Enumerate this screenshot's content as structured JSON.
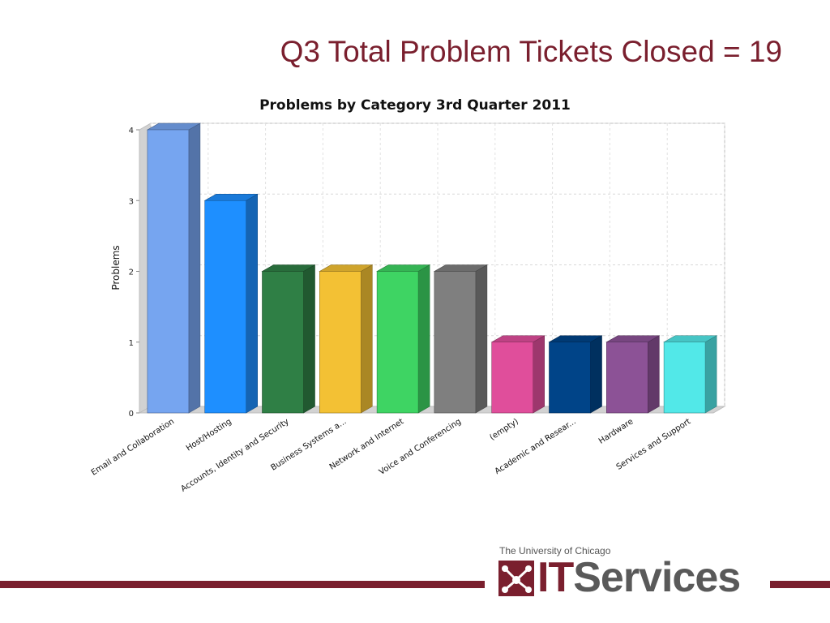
{
  "slide": {
    "title": "Q3 Total Problem Tickets Closed = 19"
  },
  "chart_data": {
    "type": "bar",
    "title": "Problems by Category 3rd Quarter 2011",
    "xlabel": "",
    "ylabel": "Problems",
    "ylim": [
      0,
      4
    ],
    "yticks": [
      0,
      1,
      2,
      3,
      4
    ],
    "grid": true,
    "three_d": true,
    "categories": [
      "Email and Collaboration",
      "Host/Hosting",
      "Accounts, Identity and Security",
      "Business Systems a...",
      "Network and Internet",
      "Voice and Conferencing",
      "(empty)",
      "Academic and Resear...",
      "Hardware",
      "Services and Support"
    ],
    "values": [
      4,
      3,
      2,
      2,
      2,
      2,
      1,
      1,
      1,
      1
    ],
    "colors": [
      "#76a5f0",
      "#1e8fff",
      "#2f7f45",
      "#f3c134",
      "#3ed463",
      "#7f7f7f",
      "#e04e9b",
      "#004488",
      "#8c5296",
      "#52e8e8"
    ]
  },
  "footer": {
    "org": "The University of Chicago",
    "logo_it": "IT",
    "logo_services": "Services",
    "logo_icon": "it-services-logo-icon",
    "brand_color": "#7a1f2e"
  }
}
